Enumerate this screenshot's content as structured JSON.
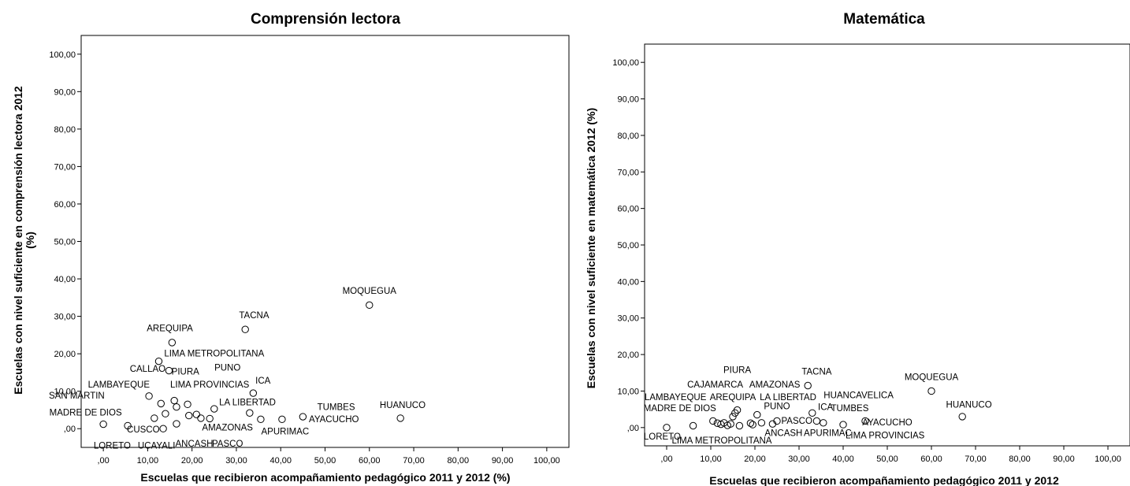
{
  "chart_data": [
    {
      "type": "scatter",
      "title": "Comprensión lectora",
      "xlabel": "Escuelas que recibieron acompañamiento pedagógico 2011 y 2012 (%)",
      "ylabel_lines": [
        "Escuelas con nivel suficiente en comprensión lectora 2012",
        "(%)"
      ],
      "xlim": [
        -5,
        105
      ],
      "ylim": [
        -5,
        105
      ],
      "xticks": [
        ",00",
        "10,00",
        "20,00",
        "30,00",
        "40,00",
        "50,00",
        "60,00",
        "70,00",
        "80,00",
        "90,00",
        "100,00"
      ],
      "yticks": [
        ",00",
        "10,00",
        "20,00",
        "30,00",
        "40,00",
        "50,00",
        "60,00",
        "70,00",
        "80,00",
        "90,00",
        "100,00"
      ],
      "points": [
        {
          "x": 60.0,
          "y": 33.0
        },
        {
          "x": 32.0,
          "y": 26.5
        },
        {
          "x": 15.5,
          "y": 23.0
        },
        {
          "x": 12.5,
          "y": 18.0
        },
        {
          "x": 14.8,
          "y": 15.5
        },
        {
          "x": 10.3,
          "y": 8.7
        },
        {
          "x": 33.8,
          "y": 9.5
        },
        {
          "x": 16.0,
          "y": 7.5
        },
        {
          "x": 13.0,
          "y": 6.7
        },
        {
          "x": 19.0,
          "y": 6.5
        },
        {
          "x": 16.5,
          "y": 5.8
        },
        {
          "x": 25.0,
          "y": 5.3
        },
        {
          "x": 14.0,
          "y": 4.0
        },
        {
          "x": 19.3,
          "y": 3.5
        },
        {
          "x": 21.0,
          "y": 3.8
        },
        {
          "x": 33.0,
          "y": 4.2
        },
        {
          "x": 11.5,
          "y": 2.8
        },
        {
          "x": 22.0,
          "y": 2.8
        },
        {
          "x": 24.0,
          "y": 2.7
        },
        {
          "x": 35.5,
          "y": 2.5
        },
        {
          "x": 40.3,
          "y": 2.5
        },
        {
          "x": 45.0,
          "y": 3.2
        },
        {
          "x": 67.0,
          "y": 2.8
        },
        {
          "x": 0.0,
          "y": 1.2
        },
        {
          "x": 5.5,
          "y": 0.8
        },
        {
          "x": 13.5,
          "y": 0.0
        },
        {
          "x": 16.5,
          "y": 1.3
        }
      ],
      "labels": [
        {
          "text": "MOQUEGUA",
          "x": 60.0,
          "y": 36.0
        },
        {
          "text": "TACNA",
          "x": 34.0,
          "y": 29.5
        },
        {
          "text": "AREQUIPA",
          "x": 15.0,
          "y": 26.0
        },
        {
          "text": "LIMA METROPOLITANA",
          "x": 25.0,
          "y": 19.3
        },
        {
          "text": "CALLAO",
          "x": 10.0,
          "y": 15.2
        },
        {
          "text": "PIURA",
          "x": 18.5,
          "y": 14.5
        },
        {
          "text": "PUNO",
          "x": 28.0,
          "y": 15.5
        },
        {
          "text": "ICA",
          "x": 36.0,
          "y": 12.0
        },
        {
          "text": "LAMBAYEQUE",
          "x": 3.5,
          "y": 11.0
        },
        {
          "text": "LIMA PROVINCIAS",
          "x": 24.0,
          "y": 11.0
        },
        {
          "text": "SAN MARTIN",
          "x": -6.0,
          "y": 8.0
        },
        {
          "text": "LA LIBERTAD",
          "x": 32.5,
          "y": 6.3
        },
        {
          "text": "TUMBES",
          "x": 52.5,
          "y": 5.0
        },
        {
          "text": "HUANUCO",
          "x": 67.5,
          "y": 5.5
        },
        {
          "text": "MADRE DE DIOS",
          "x": -4.0,
          "y": 3.5
        },
        {
          "text": "AYACUCHO",
          "x": 52.0,
          "y": 1.7
        },
        {
          "text": "AMAZONAS",
          "x": 28.0,
          "y": -0.5
        },
        {
          "text": "APURIMAC",
          "x": 41.0,
          "y": -1.5
        },
        {
          "text": "CUSCO",
          "x": 9.0,
          "y": -1.0
        },
        {
          "text": "LORETO",
          "x": 2.0,
          "y": -5.3
        },
        {
          "text": "UCAYALI",
          "x": 12.0,
          "y": -5.3
        },
        {
          "text": "ANCASH",
          "x": 20.5,
          "y": -4.8
        },
        {
          "text": "PASCO",
          "x": 28.0,
          "y": -4.8
        }
      ]
    },
    {
      "type": "scatter",
      "title": "Matemática",
      "xlabel": "Escuelas que recibieron acompañamiento pedagógico 2011 y 2012",
      "ylabel_lines": [
        "Escuelas con nivel suficiente en matemática 2012 (%)"
      ],
      "xlim": [
        -5,
        105
      ],
      "ylim": [
        -5,
        105
      ],
      "xticks": [
        ",00",
        "10,00",
        "20,00",
        "30,00",
        "40,00",
        "50,00",
        "60,00",
        "70,00",
        "80,00",
        "90,00",
        "100,00"
      ],
      "yticks": [
        ",00",
        "10,00",
        "20,00",
        "30,00",
        "40,00",
        "50,00",
        "60,00",
        "70,00",
        "80,00",
        "90,00",
        "100,00"
      ],
      "points": [
        {
          "x": 32.0,
          "y": 11.5
        },
        {
          "x": 60.0,
          "y": 10.0
        },
        {
          "x": 67.0,
          "y": 3.0
        },
        {
          "x": 0.0,
          "y": 0.0
        },
        {
          "x": 6.0,
          "y": 0.5
        },
        {
          "x": 10.5,
          "y": 1.8
        },
        {
          "x": 11.5,
          "y": 1.2
        },
        {
          "x": 12.3,
          "y": 0.9
        },
        {
          "x": 13.0,
          "y": 1.3
        },
        {
          "x": 13.8,
          "y": 0.6
        },
        {
          "x": 14.5,
          "y": 1.0
        },
        {
          "x": 15.0,
          "y": 3.0
        },
        {
          "x": 15.5,
          "y": 4.0
        },
        {
          "x": 16.0,
          "y": 4.8
        },
        {
          "x": 16.5,
          "y": 0.5
        },
        {
          "x": 19.0,
          "y": 1.2
        },
        {
          "x": 19.5,
          "y": 0.8
        },
        {
          "x": 20.5,
          "y": 3.5
        },
        {
          "x": 21.5,
          "y": 1.3
        },
        {
          "x": 24.0,
          "y": 1.0
        },
        {
          "x": 25.0,
          "y": 1.8
        },
        {
          "x": 33.0,
          "y": 4.0
        },
        {
          "x": 34.0,
          "y": 1.8
        },
        {
          "x": 35.5,
          "y": 1.3
        },
        {
          "x": 40.0,
          "y": 0.8
        },
        {
          "x": 45.0,
          "y": 1.8
        }
      ],
      "labels": [
        {
          "text": "PIURA",
          "x": 16.0,
          "y": 15.0
        },
        {
          "text": "TACNA",
          "x": 34.0,
          "y": 14.5
        },
        {
          "text": "MOQUEGUA",
          "x": 60.0,
          "y": 13.0
        },
        {
          "text": "CAJAMARCA",
          "x": 11.0,
          "y": 11.0
        },
        {
          "text": "AMAZONAS",
          "x": 24.5,
          "y": 11.0
        },
        {
          "text": "LAMBAYEQUE",
          "x": 2.0,
          "y": 7.5
        },
        {
          "text": "AREQUIPA",
          "x": 15.0,
          "y": 7.5
        },
        {
          "text": "LA LIBERTAD",
          "x": 27.5,
          "y": 7.5
        },
        {
          "text": "HUANCAVELICA",
          "x": 43.5,
          "y": 8.0
        },
        {
          "text": "HUANUCO",
          "x": 68.5,
          "y": 5.5
        },
        {
          "text": "MADRE DE DIOS",
          "x": 3.0,
          "y": 4.5
        },
        {
          "text": "PUNO",
          "x": 25.0,
          "y": 5.0
        },
        {
          "text": "ICA",
          "x": 36.0,
          "y": 4.8
        },
        {
          "text": "TUMBES",
          "x": 41.5,
          "y": 4.5
        },
        {
          "text": "PASCO",
          "x": 29.5,
          "y": 1.0
        },
        {
          "text": "AYACUCHO",
          "x": 50.0,
          "y": 0.6
        },
        {
          "text": "ANCASH",
          "x": 26.5,
          "y": -2.3
        },
        {
          "text": "APURIMAC",
          "x": 36.5,
          "y": -2.3
        },
        {
          "text": "LORETO",
          "x": -1.0,
          "y": -3.3
        },
        {
          "text": "LIMA METROPOLITANA",
          "x": 12.5,
          "y": -4.3
        },
        {
          "text": "LIMA PROVINCIAS",
          "x": 49.5,
          "y": -3.0
        }
      ]
    }
  ]
}
